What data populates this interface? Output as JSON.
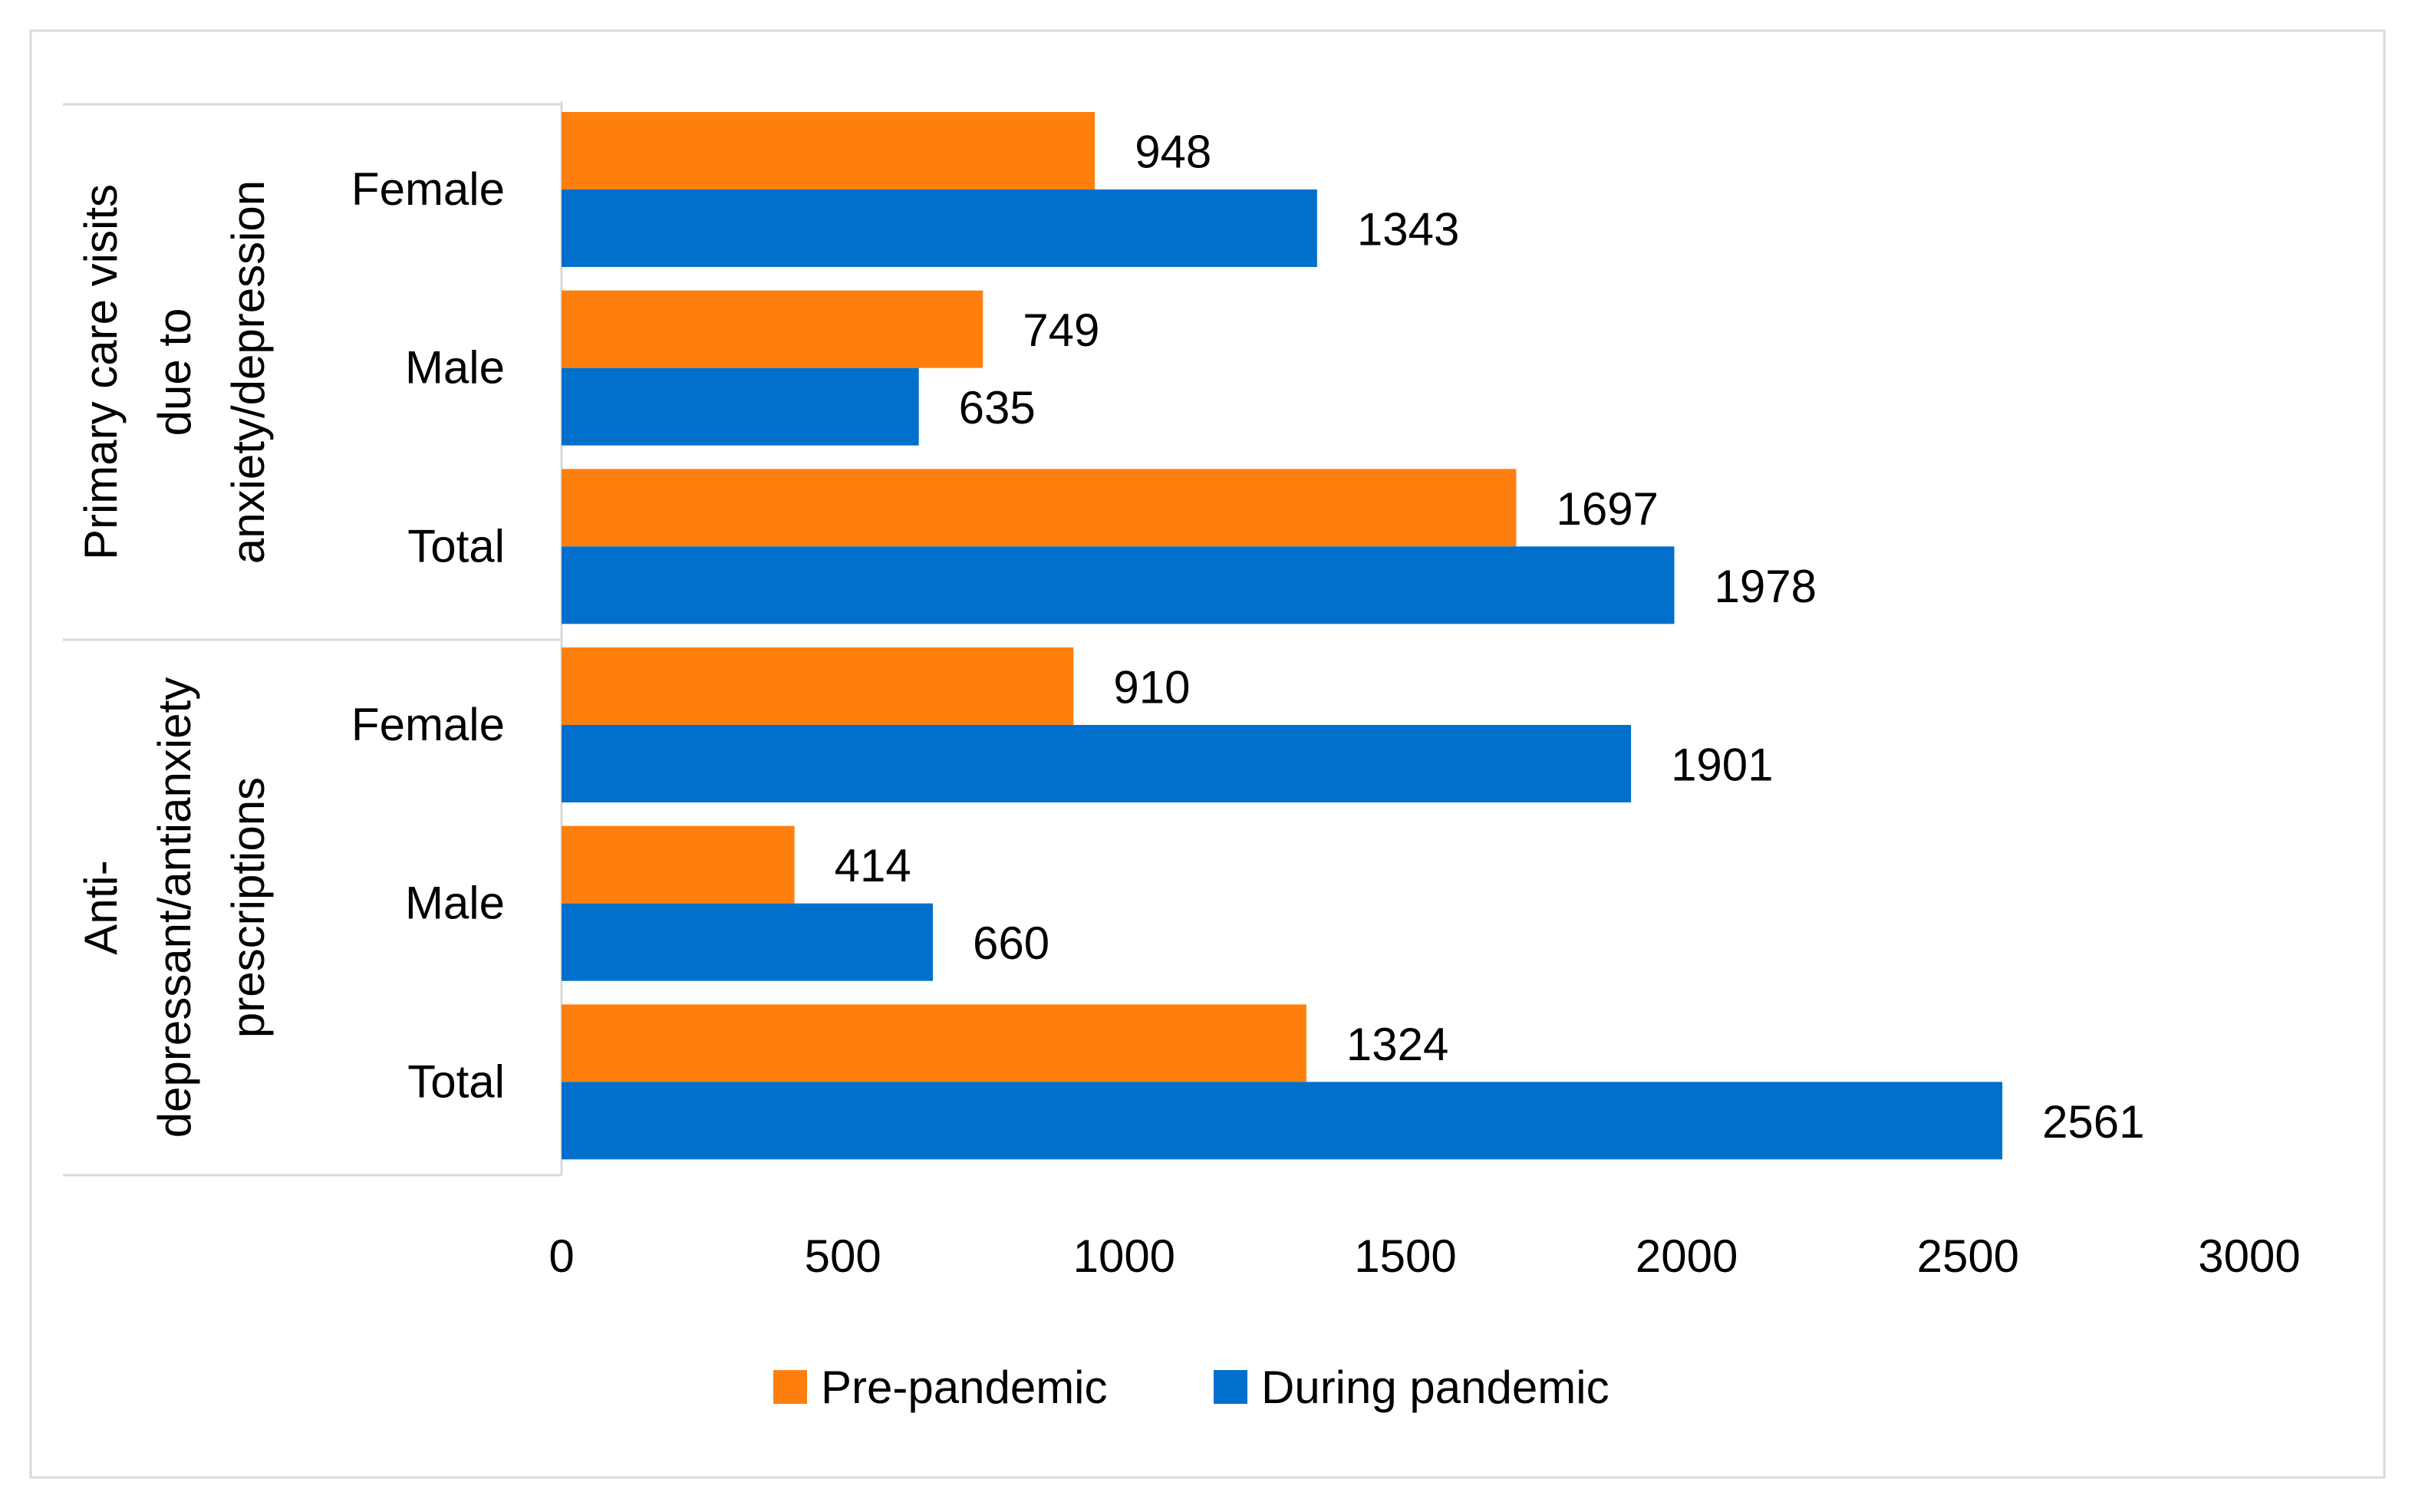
{
  "chart_data": {
    "type": "bar",
    "orientation": "horizontal",
    "title": "",
    "xlabel": "",
    "ylabel": "",
    "xlim": [
      0,
      3000
    ],
    "x_ticks": [
      "0",
      "500",
      "1000",
      "1500",
      "2000",
      "2500",
      "3000"
    ],
    "grid": false,
    "legend_position": "bottom",
    "groups": [
      {
        "label": "Primary care visits due to anxiety/depression",
        "label_lines": [
          "Primary care visits",
          "due to",
          "anxiety/depression"
        ],
        "categories": [
          "Female",
          "Male",
          "Total"
        ]
      },
      {
        "label": "Anti-depressant/antianxiety prescriptions",
        "label_lines": [
          "Anti-",
          "depressant/antianxiety",
          "prescriptions"
        ],
        "categories": [
          "Female",
          "Male",
          "Total"
        ]
      }
    ],
    "series": [
      {
        "name": "Pre-pandemic",
        "color": "#FF7F0E",
        "values": [
          948,
          749,
          1697,
          910,
          414,
          1324
        ],
        "labels": [
          "948",
          "749",
          "1697",
          "910",
          "414",
          "1324"
        ]
      },
      {
        "name": "During pandemic",
        "color": "#0070CC",
        "values": [
          1343,
          635,
          1978,
          1901,
          660,
          2561
        ],
        "labels": [
          "1343",
          "635",
          "1978",
          "1901",
          "660",
          "2561"
        ]
      }
    ]
  }
}
